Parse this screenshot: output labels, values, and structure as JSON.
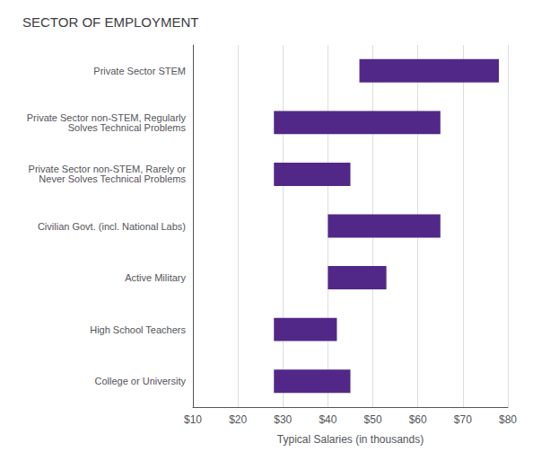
{
  "chart_data": {
    "type": "bar",
    "orientation": "horizontal",
    "title": "SECTOR OF EMPLOYMENT",
    "xlabel": "Typical Salaries (in thousands)",
    "categories": [
      "College or University",
      "High School Teachers",
      "Active Military",
      "Civilian Govt. (incl. National Labs)",
      "Private Sector non-STEM, Rarely or\nNever Solves Technical Problems",
      "Private Sector non-STEM, Regularly\nSolves Technical Problems",
      "Private Sector STEM"
    ],
    "values": [
      [
        28,
        45
      ],
      [
        28,
        42
      ],
      [
        40,
        53
      ],
      [
        40,
        65
      ],
      [
        28,
        45
      ],
      [
        28,
        65
      ],
      [
        47,
        78
      ]
    ],
    "color": "#512888",
    "xlim": [
      10,
      80
    ],
    "xticks": [
      {
        "value": 10,
        "label": "$10"
      },
      {
        "value": 20,
        "label": "$20"
      },
      {
        "value": 30,
        "label": "$30"
      },
      {
        "value": 40,
        "label": "$40"
      },
      {
        "value": 50,
        "label": "$50"
      },
      {
        "value": 60,
        "label": "$60"
      },
      {
        "value": 70,
        "label": "$70"
      },
      {
        "value": 80,
        "label": "$80"
      }
    ],
    "grid": true
  }
}
